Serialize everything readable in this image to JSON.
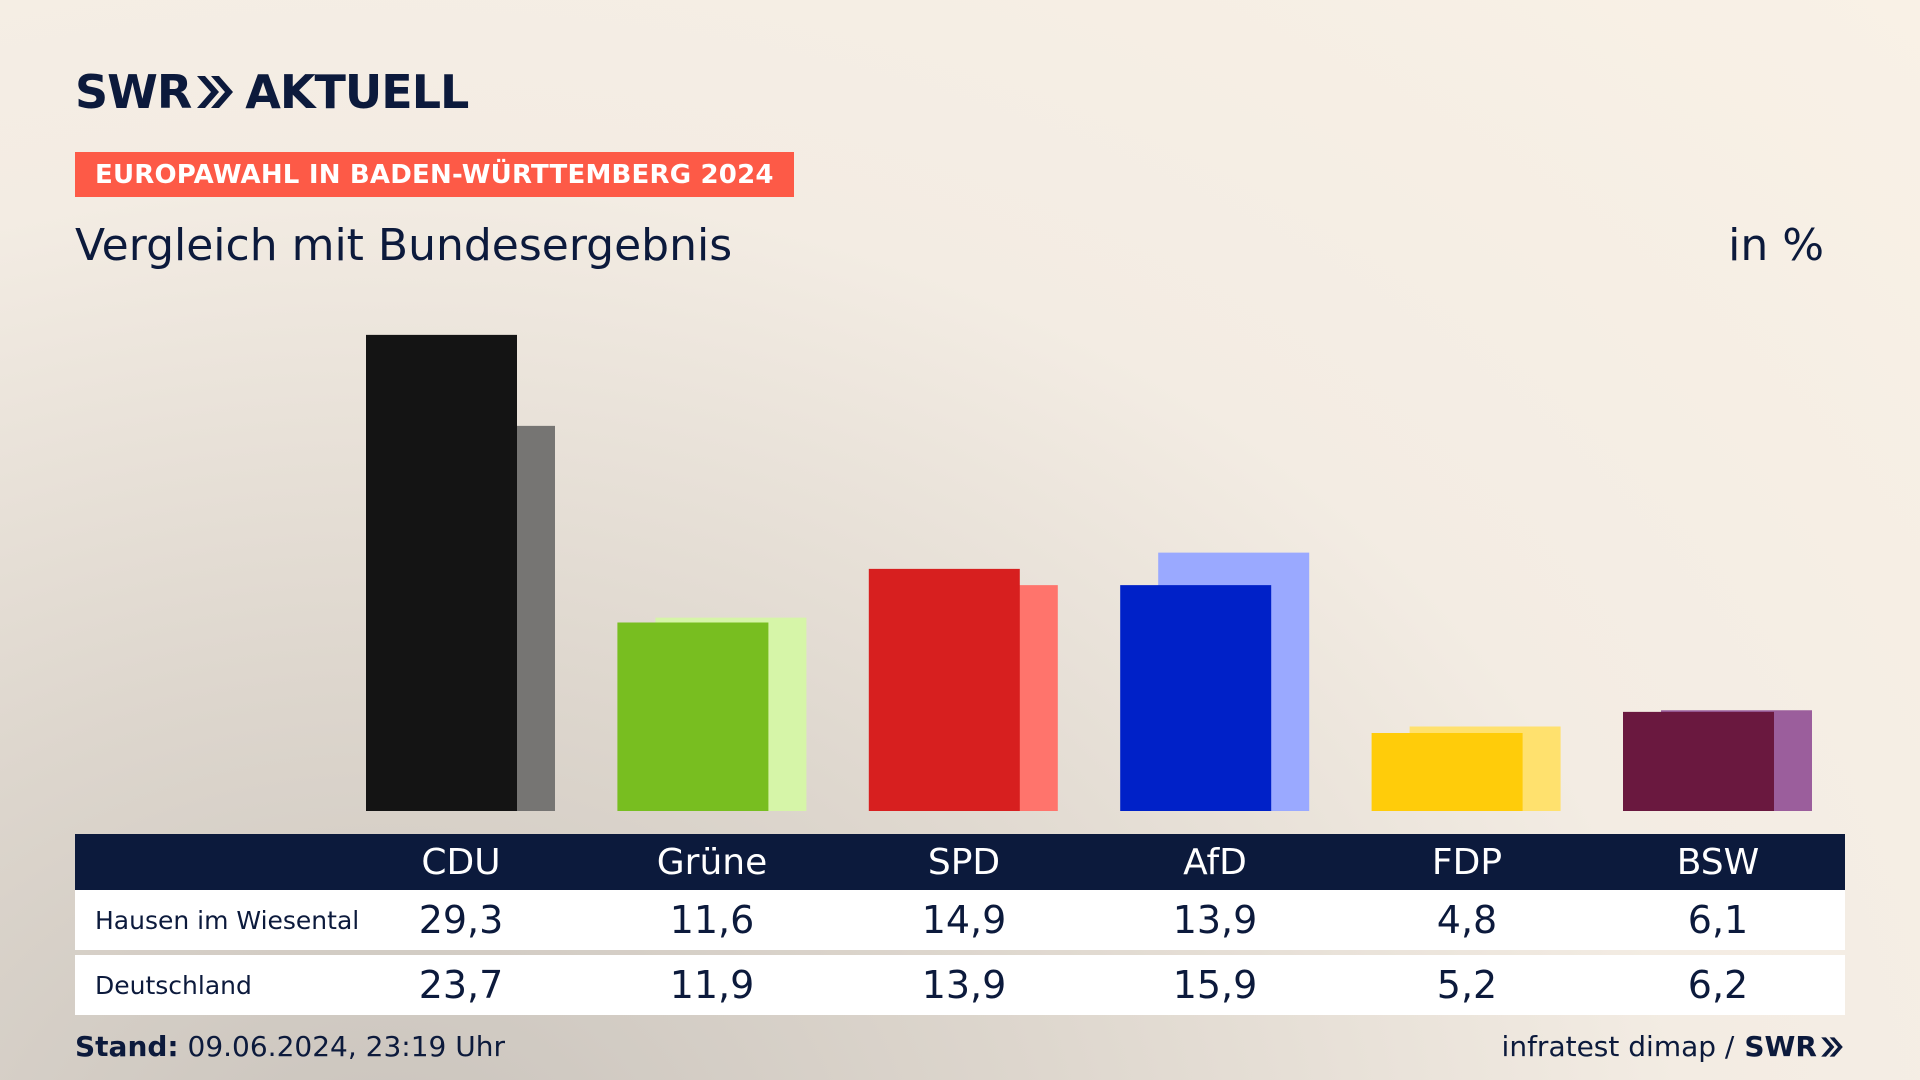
{
  "header": {
    "brand_left": "SWR",
    "brand_right": "AKTUELL",
    "banner": "EUROPAWAHL IN BADEN-WÜRTTEMBERG 2024",
    "subtitle": "Vergleich mit Bundesergebnis",
    "unit": "in %"
  },
  "chart_data": {
    "type": "bar",
    "title": "Vergleich mit Bundesergebnis",
    "unit": "in %",
    "ylim": [
      0,
      30
    ],
    "categories": [
      "CDU",
      "Grüne",
      "SPD",
      "AfD",
      "FDP",
      "BSW"
    ],
    "series": [
      {
        "name": "Hausen im Wiesental",
        "values": [
          29.3,
          11.6,
          14.9,
          13.9,
          4.8,
          6.1
        ]
      },
      {
        "name": "Deutschland",
        "values": [
          23.7,
          11.9,
          13.9,
          15.9,
          5.2,
          6.2
        ]
      }
    ],
    "colors": {
      "primary": [
        "#141414",
        "#78be20",
        "#d71f1f",
        "#0021c8",
        "#ffcc0a",
        "#6a183f"
      ],
      "secondary": [
        "#767573",
        "#d6f5a8",
        "#ff746c",
        "#9aa9ff",
        "#ffe16e",
        "#9b5e9c"
      ]
    },
    "grid": false
  },
  "table": {
    "headers": [
      "CDU",
      "Grüne",
      "SPD",
      "AfD",
      "FDP",
      "BSW"
    ],
    "rows": [
      {
        "label": "Hausen im Wiesental",
        "values": [
          "29,3",
          "11,6",
          "14,9",
          "13,9",
          "4,8",
          "6,1"
        ]
      },
      {
        "label": "Deutschland",
        "values": [
          "23,7",
          "11,9",
          "13,9",
          "15,9",
          "5,2",
          "6,2"
        ]
      }
    ]
  },
  "footer": {
    "stand_label": "Stand:",
    "stand_value": " 09.06.2024, 23:19 Uhr",
    "source": "infratest dimap /",
    "source_brand": "SWR"
  },
  "colors": {
    "navy": "#0c1a3c",
    "banner": "#fd5a47"
  }
}
